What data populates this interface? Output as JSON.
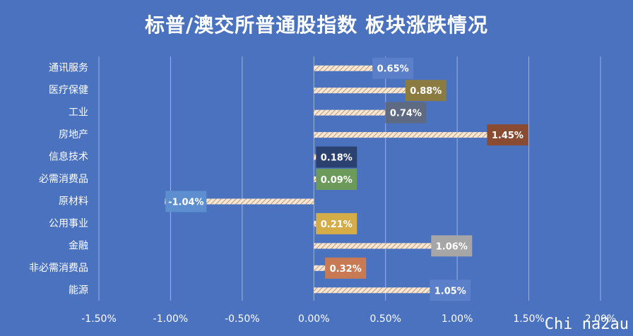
{
  "chart_data": {
    "type": "bar",
    "orientation": "horizontal",
    "title": "标普/澳交所普通股指数 板块涨跌情况",
    "categories": [
      "通讯服务",
      "医疗保健",
      "工业",
      "房地产",
      "信息技术",
      "必需消费品",
      "原材料",
      "公用事业",
      "金融",
      "非必需消费品",
      "能源"
    ],
    "values": [
      0.65,
      0.88,
      0.74,
      1.45,
      0.18,
      0.09,
      -1.04,
      0.21,
      1.06,
      0.32,
      1.05
    ],
    "data_labels": [
      "0.65%",
      "0.88%",
      "0.74%",
      "1.45%",
      "0.18%",
      "0.09%",
      "-1.04%",
      "0.21%",
      "1.06%",
      "0.32%",
      "1.05%"
    ],
    "label_colors": [
      "#5b7fc9",
      "#8c7b40",
      "#5d6a82",
      "#8a4b33",
      "#2b4270",
      "#6b9a5a",
      "#5d8fd0",
      "#d4ad48",
      "#a6a6a6",
      "#c87a55",
      "#5b7fc9"
    ],
    "xlim": [
      -1.5,
      2.0
    ],
    "xticks": [
      -1.5,
      -1.0,
      -0.5,
      0.0,
      0.5,
      1.0,
      1.5,
      2.0
    ],
    "xtick_labels": [
      "-1.50%",
      "-1.00%",
      "-0.50%",
      "0.00%",
      "0.50%",
      "1.00%",
      "1.50%",
      "2.00%"
    ],
    "grid": true,
    "bar_pattern": "hatched",
    "colors": {
      "background": "#4a72bf",
      "bar": "#f5e8d8",
      "hatch": "#c9a27c",
      "grid": "#9db3e0",
      "text": "#ffffff"
    }
  },
  "watermark": "Chi na2au"
}
